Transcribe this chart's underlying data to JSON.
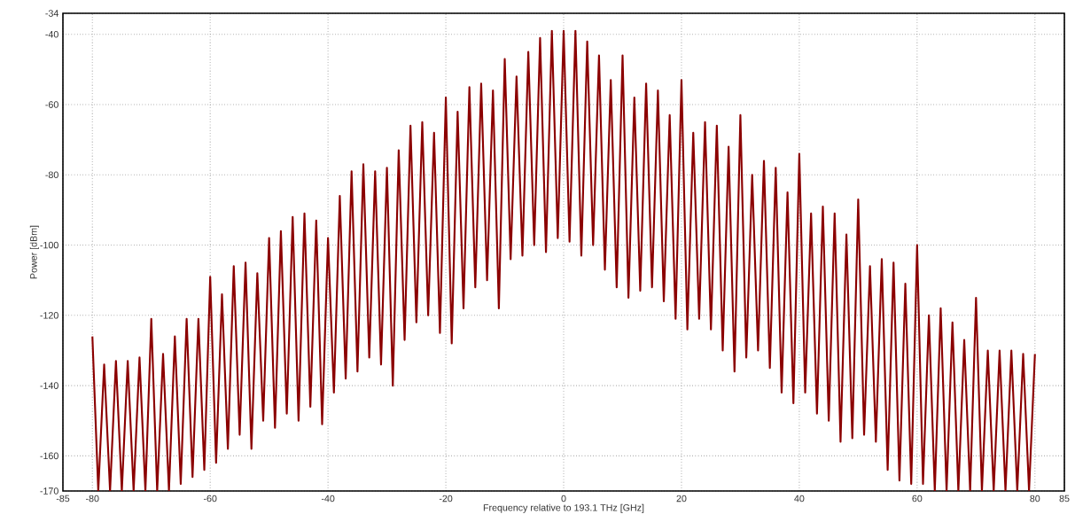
{
  "chart_data": {
    "type": "line",
    "xlabel": "Frequency relative to 193.1 THz [GHz]",
    "ylabel": "Power [dBm]",
    "xlim": [
      -85,
      85
    ],
    "ylim": [
      -170,
      -34
    ],
    "xticks": [
      -85,
      -80,
      -60,
      -40,
      -20,
      0,
      20,
      40,
      60,
      80,
      85
    ],
    "yticks": [
      -170,
      -160,
      -140,
      -120,
      -100,
      -80,
      -60,
      -40,
      -34
    ],
    "grid": true,
    "legend": false,
    "marker": "none",
    "line_style": "solid",
    "x": [
      -80,
      -79,
      -78,
      -77,
      -76,
      -75,
      -74,
      -73,
      -72,
      -71,
      -70,
      -69,
      -68,
      -67,
      -66,
      -65,
      -64,
      -63,
      -62,
      -61,
      -60,
      -59,
      -58,
      -57,
      -56,
      -55,
      -54,
      -53,
      -52,
      -51,
      -50,
      -49,
      -48,
      -47,
      -46,
      -45,
      -44,
      -43,
      -42,
      -41,
      -40,
      -39,
      -38,
      -37,
      -36,
      -35,
      -34,
      -33,
      -32,
      -31,
      -30,
      -29,
      -28,
      -27,
      -26,
      -25,
      -24,
      -23,
      -22,
      -21,
      -20,
      -19,
      -18,
      -17,
      -16,
      -15,
      -14,
      -13,
      -12,
      -11,
      -10,
      -9,
      -8,
      -7,
      -6,
      -5,
      -4,
      -3,
      -2,
      -1,
      0,
      1,
      2,
      3,
      4,
      5,
      6,
      7,
      8,
      9,
      10,
      11,
      12,
      13,
      14,
      15,
      16,
      17,
      18,
      19,
      20,
      21,
      22,
      23,
      24,
      25,
      26,
      27,
      28,
      29,
      30,
      31,
      32,
      33,
      34,
      35,
      36,
      37,
      38,
      39,
      40,
      41,
      42,
      43,
      44,
      45,
      46,
      47,
      48,
      49,
      50,
      51,
      52,
      53,
      54,
      55,
      56,
      57,
      58,
      59,
      60,
      61,
      62,
      63,
      64,
      65,
      66,
      67,
      68,
      69,
      70,
      71,
      72,
      73,
      74,
      75,
      76,
      77,
      78,
      79,
      80
    ],
    "series": [
      {
        "color": "#8b0000",
        "values": [
          -126,
          -170,
          -134,
          -170,
          -133,
          -170,
          -133,
          -170,
          -132,
          -170,
          -121,
          -170,
          -131,
          -170,
          -126,
          -168,
          -121,
          -166,
          -121,
          -164,
          -109,
          -162,
          -114,
          -158,
          -106,
          -154,
          -105,
          -158,
          -108,
          -150,
          -98,
          -152,
          -96,
          -148,
          -92,
          -150,
          -91,
          -146,
          -93,
          -151,
          -98,
          -142,
          -86,
          -138,
          -79,
          -136,
          -77,
          -132,
          -79,
          -134,
          -78,
          -140,
          -73,
          -127,
          -66,
          -122,
          -65,
          -120,
          -68,
          -125,
          -58,
          -128,
          -62,
          -118,
          -55,
          -112,
          -54,
          -110,
          -56,
          -118,
          -47,
          -104,
          -52,
          -103,
          -45,
          -100,
          -41,
          -102,
          -39,
          -98,
          -39,
          -99,
          -39,
          -103,
          -42,
          -100,
          -46,
          -107,
          -53,
          -112,
          -46,
          -115,
          -58,
          -113,
          -54,
          -112,
          -56,
          -116,
          -63,
          -121,
          -53,
          -124,
          -68,
          -121,
          -65,
          -124,
          -66,
          -130,
          -72,
          -136,
          -63,
          -132,
          -80,
          -130,
          -76,
          -135,
          -78,
          -142,
          -85,
          -145,
          -74,
          -142,
          -91,
          -148,
          -89,
          -150,
          -91,
          -156,
          -97,
          -155,
          -87,
          -154,
          -106,
          -156,
          -104,
          -164,
          -105,
          -167,
          -111,
          -168,
          -100,
          -168,
          -120,
          -170,
          -118,
          -170,
          -122,
          -170,
          -127,
          -170,
          -115,
          -170,
          -130,
          -170,
          -130,
          -170,
          -130,
          -170,
          -131,
          -170,
          -131
        ]
      }
    ]
  }
}
